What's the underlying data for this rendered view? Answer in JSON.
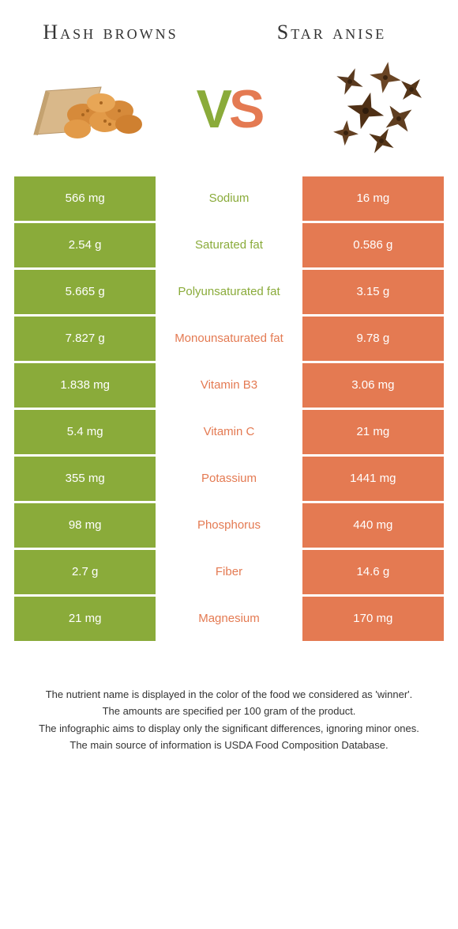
{
  "colors": {
    "left": "#8aab3a",
    "right": "#e47a52",
    "bg": "#ffffff",
    "text_dark": "#333333",
    "text_light": "#ffffff"
  },
  "header": {
    "left_title": "Hash browns",
    "right_title": "Star anise",
    "vs_v": "V",
    "vs_s": "S"
  },
  "rows": [
    {
      "left": "566 mg",
      "label": "Sodium",
      "right": "16 mg",
      "winner": "left"
    },
    {
      "left": "2.54 g",
      "label": "Saturated fat",
      "right": "0.586 g",
      "winner": "left"
    },
    {
      "left": "5.665 g",
      "label": "Polyunsaturated fat",
      "right": "3.15 g",
      "winner": "left"
    },
    {
      "left": "7.827 g",
      "label": "Monounsaturated fat",
      "right": "9.78 g",
      "winner": "right"
    },
    {
      "left": "1.838 mg",
      "label": "Vitamin B3",
      "right": "3.06 mg",
      "winner": "right"
    },
    {
      "left": "5.4 mg",
      "label": "Vitamin C",
      "right": "21 mg",
      "winner": "right"
    },
    {
      "left": "355 mg",
      "label": "Potassium",
      "right": "1441 mg",
      "winner": "right"
    },
    {
      "left": "98 mg",
      "label": "Phosphorus",
      "right": "440 mg",
      "winner": "right"
    },
    {
      "left": "2.7 g",
      "label": "Fiber",
      "right": "14.6 g",
      "winner": "right"
    },
    {
      "left": "21 mg",
      "label": "Magnesium",
      "right": "170 mg",
      "winner": "right"
    }
  ],
  "footnotes": [
    "The nutrient name is displayed in the color of the food we considered as 'winner'.",
    "The amounts are specified per 100 gram of the product.",
    "The infographic aims to display only the significant differences, ignoring minor ones.",
    "The main source of information is USDA Food Composition Database."
  ]
}
